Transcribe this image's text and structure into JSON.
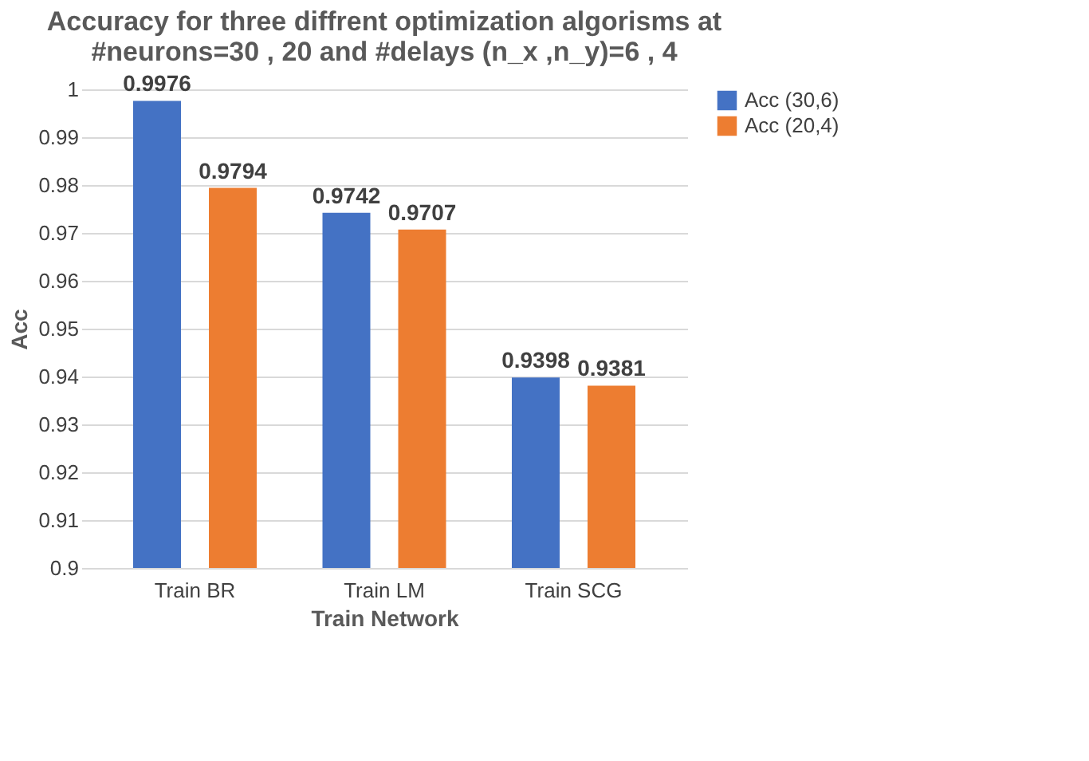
{
  "chart_data": {
    "type": "bar",
    "title": [
      "Accuracy for three diffrent optimization algorisms at",
      "#neurons=30 , 20 and #delays (n_x ,n_y)=6 , 4"
    ],
    "xlabel": "Train Network",
    "ylabel": "Acc",
    "categories": [
      "Train BR",
      "Train LM",
      "Train SCG"
    ],
    "series": [
      {
        "name": "Acc (30,6)",
        "color": "#4472c4",
        "values": [
          0.9976,
          0.9742,
          0.9398
        ]
      },
      {
        "name": "Acc (20,4)",
        "color": "#ed7d31",
        "values": [
          0.9794,
          0.9707,
          0.9381
        ]
      }
    ],
    "ylim": [
      0.9,
      1
    ],
    "yticks": [
      0.9,
      0.91,
      0.92,
      0.93,
      0.94,
      0.95,
      0.96,
      0.97,
      0.98,
      0.99,
      1
    ],
    "grid": "y",
    "legend": "right",
    "data_labels": true
  }
}
